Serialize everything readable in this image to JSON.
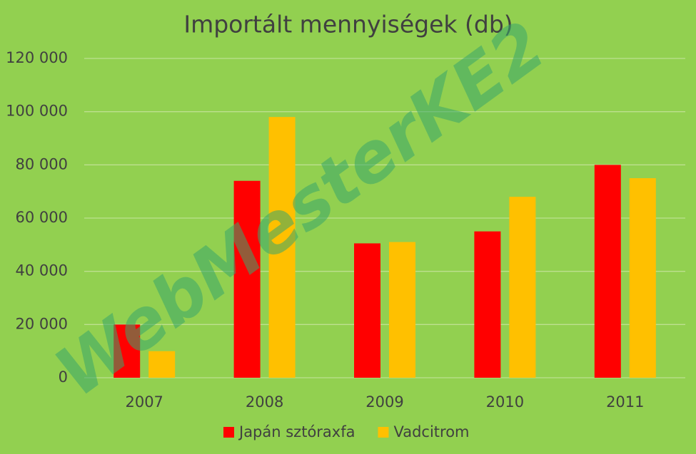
{
  "chart_data": {
    "type": "bar",
    "title": "Importált mennyiségek (db)",
    "categories": [
      "2007",
      "2008",
      "2009",
      "2010",
      "2011"
    ],
    "series": [
      {
        "name": "Japán sztóraxfa",
        "color": "#ff0000",
        "values": [
          20000,
          74000,
          50500,
          55000,
          80000
        ]
      },
      {
        "name": "Vadcitrom",
        "color": "#ffc000",
        "values": [
          10000,
          98000,
          51000,
          68000,
          75000
        ]
      }
    ],
    "ylim": [
      0,
      120000
    ],
    "yticks": [
      0,
      {
        "value": 20000,
        "label": "20 000"
      },
      {
        "value": 40000,
        "label": "40 000"
      },
      {
        "value": 60000,
        "label": "60 000"
      },
      {
        "value": 80000,
        "label": "80 000"
      },
      {
        "value": 100000,
        "label": "100 000"
      },
      {
        "value": 120000,
        "label": "120 000"
      }
    ],
    "grid": true,
    "legend": "bottom",
    "watermark": "WebMesterKE2"
  }
}
